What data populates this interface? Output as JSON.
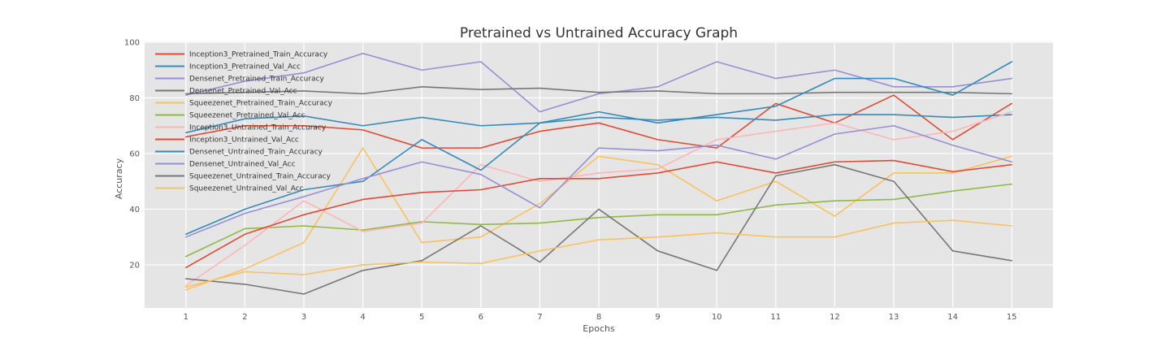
{
  "chart_data": {
    "type": "line",
    "title": "Pretrained vs Untrained Accuracy Graph",
    "xlabel": "Epochs",
    "ylabel": "Accuracy",
    "x": [
      1,
      2,
      3,
      4,
      5,
      6,
      7,
      8,
      9,
      10,
      11,
      12,
      13,
      14,
      15
    ],
    "xticks": [
      1,
      2,
      3,
      4,
      5,
      6,
      7,
      8,
      9,
      10,
      11,
      12,
      13,
      14,
      15
    ],
    "yticks": [
      20,
      40,
      60,
      80,
      100
    ],
    "xlim": [
      0.3,
      15.7
    ],
    "ylim": [
      4.5,
      100.3
    ],
    "grid": true,
    "legend_position": "upper-left",
    "plot_background": "#E5E5E5",
    "gridline_color": "#FFFFFF",
    "tick_color": "#555555",
    "series": [
      {
        "name": "Inception3_Pretrained_Train_Accuracy",
        "color": "#E24A33",
        "values": [
          66,
          70,
          70,
          68.5,
          62,
          62,
          68,
          71,
          65,
          62,
          78,
          71,
          81,
          65,
          78
        ]
      },
      {
        "name": "Inception3_Pretrained_Val_Acc",
        "color": "#348ABD",
        "values": [
          67.5,
          72.5,
          73.5,
          70,
          73,
          70,
          71,
          73,
          72,
          73,
          72,
          74,
          74,
          73,
          74
        ]
      },
      {
        "name": "Densenet_Pretrained_Train_Accuracy",
        "color": "#988ED5",
        "values": [
          81,
          86,
          89,
          96,
          90,
          93,
          75,
          81.5,
          84,
          93,
          87,
          90,
          84,
          84,
          87
        ]
      },
      {
        "name": "Densenet_Pretrained_Val_Acc",
        "color": "#777777",
        "values": [
          81.5,
          82,
          82.5,
          81.5,
          84,
          83,
          83.5,
          82,
          82.5,
          81.5,
          81.5,
          82,
          82,
          82,
          81.5
        ]
      },
      {
        "name": "Squeezenet_Pretrained_Train_Accuracy",
        "color": "#FBC15E",
        "values": [
          11,
          18.5,
          28,
          62,
          28,
          30,
          42,
          59,
          56,
          43,
          50,
          37.5,
          53,
          53,
          59
        ]
      },
      {
        "name": "Squeezenet_Pretrained_Val_Acc",
        "color": "#8EBA42",
        "values": [
          23,
          33,
          34,
          32.5,
          35.5,
          34.5,
          35,
          37,
          38,
          38,
          41.5,
          43,
          43.5,
          46.5,
          49
        ]
      },
      {
        "name": "Inception3_Untrained_Train_Accuracy",
        "color": "#FFB5B8",
        "values": [
          12.5,
          27,
          43,
          32,
          35,
          56,
          50,
          53,
          54.5,
          65,
          68,
          71,
          65,
          68,
          75
        ]
      },
      {
        "name": "Inception3_Untrained_Val_Acc",
        "color": "#E24A33",
        "values": [
          19,
          31,
          38,
          43.5,
          46,
          47,
          51,
          51,
          53,
          57,
          53,
          57,
          57.5,
          53.5,
          56
        ]
      },
      {
        "name": "Densenet_Untrained_Train_Accuracy",
        "color": "#348ABD",
        "values": [
          31,
          40,
          47,
          50,
          65,
          54,
          71,
          75,
          71,
          74,
          77,
          87,
          87,
          81,
          93
        ]
      },
      {
        "name": "Densenet_Untrained_Val_Acc",
        "color": "#988ED5",
        "values": [
          30,
          38.5,
          44.5,
          51,
          57,
          52.5,
          40.5,
          62,
          61,
          63,
          58,
          67,
          70,
          63,
          57
        ]
      },
      {
        "name": "Squeezenet_Untrained_Train_Accuracy",
        "color": "#777777",
        "values": [
          15,
          13,
          9.5,
          18,
          21.5,
          34,
          21,
          40,
          25,
          18,
          52,
          56,
          50,
          25,
          21.5
        ]
      },
      {
        "name": "Squeezenet_Untrained_Val_Acc",
        "color": "#FBC15E",
        "values": [
          12,
          17.5,
          16.5,
          20,
          21,
          20.5,
          25,
          29,
          30,
          31.5,
          30,
          30,
          35,
          36,
          34
        ]
      }
    ]
  }
}
